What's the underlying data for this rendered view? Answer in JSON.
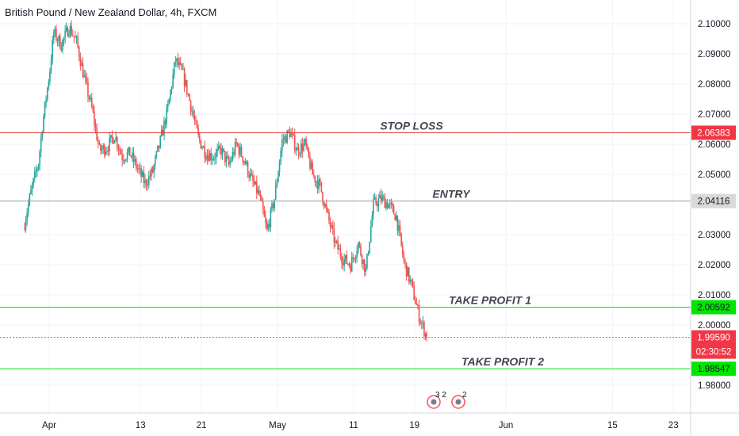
{
  "header": {
    "title": "British Pound / New Zealand Dollar, 4h, FXCM"
  },
  "colors": {
    "up": "#26a69a",
    "down": "#ef5350",
    "grid": "#f0f3fa",
    "stop_line": "#e53935",
    "entry_line": "#9e9e9e",
    "tp_line": "#00e600",
    "last_price_line": "#ef5350"
  },
  "chart_data": {
    "type": "candlestick",
    "title": "British Pound / New Zealand Dollar, 4h, FXCM",
    "ylim": [
      1.9745,
      2.106
    ],
    "yticks": [
      "2.10000",
      "2.09000",
      "2.08000",
      "2.07000",
      "2.06000",
      "2.05000",
      "2.03000",
      "2.02000",
      "2.01000",
      "2.00000",
      "1.98000"
    ],
    "ytick_values": [
      2.1,
      2.09,
      2.08,
      2.07,
      2.06,
      2.05,
      2.03,
      2.02,
      2.01,
      2.0,
      1.98
    ],
    "xlim": [
      -2.4,
      52.1
    ],
    "xticks": [
      "Apr",
      "13",
      "21",
      "May",
      "11",
      "19",
      "Jun",
      "15",
      "23"
    ],
    "xtick_days": [
      1,
      13,
      21,
      31,
      41,
      49,
      61,
      75,
      83
    ],
    "price_path": [
      [
        -2.4,
        2.032
      ],
      [
        -1.4,
        2.044
      ],
      [
        -0.4,
        2.054
      ],
      [
        0.1,
        2.066
      ],
      [
        1.1,
        2.085
      ],
      [
        1.6,
        2.097
      ],
      [
        2.6,
        2.093
      ],
      [
        3.6,
        2.099
      ],
      [
        4.6,
        2.094
      ],
      [
        5.6,
        2.082
      ],
      [
        6.6,
        2.072
      ],
      [
        7.6,
        2.058
      ],
      [
        8.6,
        2.059
      ],
      [
        9.6,
        2.063
      ],
      [
        10.6,
        2.056
      ],
      [
        11.6,
        2.057
      ],
      [
        12.6,
        2.052
      ],
      [
        13.6,
        2.047
      ],
      [
        14.6,
        2.051
      ],
      [
        15.6,
        2.061
      ],
      [
        16.6,
        2.072
      ],
      [
        17.6,
        2.088
      ],
      [
        18.6,
        2.083
      ],
      [
        19.6,
        2.073
      ],
      [
        20.6,
        2.062
      ],
      [
        21.6,
        2.057
      ],
      [
        22.6,
        2.056
      ],
      [
        23.6,
        2.058
      ],
      [
        24.6,
        2.053
      ],
      [
        25.6,
        2.06
      ],
      [
        26.6,
        2.055
      ],
      [
        27.6,
        2.048
      ],
      [
        28.6,
        2.043
      ],
      [
        29.6,
        2.031
      ],
      [
        30.6,
        2.042
      ],
      [
        31.6,
        2.061
      ],
      [
        32.6,
        2.064
      ],
      [
        33.6,
        2.058
      ],
      [
        34.6,
        2.06
      ],
      [
        35.6,
        2.05
      ],
      [
        36.6,
        2.046
      ],
      [
        37.6,
        2.036
      ],
      [
        38.6,
        2.027
      ],
      [
        39.6,
        2.022
      ],
      [
        40.6,
        2.02
      ],
      [
        41.6,
        2.027
      ],
      [
        42.6,
        2.018
      ],
      [
        43.6,
        2.04
      ],
      [
        44.6,
        2.042
      ],
      [
        45.6,
        2.04
      ],
      [
        46.6,
        2.036
      ],
      [
        47.6,
        2.021
      ],
      [
        48.6,
        2.013
      ],
      [
        49.6,
        2.003
      ],
      [
        50.6,
        1.9959
      ]
    ],
    "levels": [
      {
        "label": "STOP LOSS",
        "price": 2.06383,
        "badge": "2.06383",
        "kind": "stop"
      },
      {
        "label": "ENTRY",
        "price": 2.04116,
        "badge": "2.04116",
        "kind": "entry"
      },
      {
        "label": "TAKE PROFIT 1",
        "price": 2.00592,
        "badge": "2.00592",
        "kind": "tp"
      },
      {
        "label": "TAKE PROFIT 2",
        "price": 1.98547,
        "badge": "1.98547",
        "kind": "tp"
      }
    ],
    "last_price": {
      "value": 1.9959,
      "label": "1.99590",
      "countdown": "02:30:52"
    },
    "events_text": [
      "3",
      "2",
      "2"
    ]
  }
}
